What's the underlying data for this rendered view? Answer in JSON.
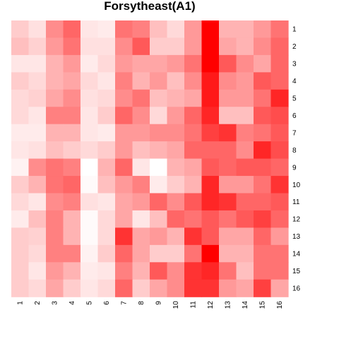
{
  "chart_data": {
    "type": "heatmap",
    "title": "Forsytheast(A1)",
    "xlabel": "",
    "ylabel": "",
    "x_labels": [
      "1",
      "2",
      "3",
      "4",
      "5",
      "6",
      "7",
      "8",
      "9",
      "10",
      "11",
      "12",
      "13",
      "14",
      "15",
      "16"
    ],
    "y_labels": [
      "1",
      "2",
      "3",
      "4",
      "5",
      "6",
      "7",
      "8",
      "9",
      "10",
      "11",
      "12",
      "13",
      "14",
      "15",
      "16"
    ],
    "value_range": [
      0,
      1
    ],
    "color_low": "#ffffff",
    "color_high": "#ff0000",
    "legend": "none",
    "grid": false,
    "values": [
      [
        0.2,
        0.12,
        0.45,
        0.6,
        0.1,
        0.08,
        0.55,
        0.5,
        0.25,
        0.15,
        0.4,
        1.0,
        0.3,
        0.3,
        0.4,
        0.55
      ],
      [
        0.25,
        0.18,
        0.4,
        0.55,
        0.12,
        0.12,
        0.45,
        0.65,
        0.2,
        0.2,
        0.4,
        1.0,
        0.35,
        0.3,
        0.45,
        0.6
      ],
      [
        0.1,
        0.1,
        0.3,
        0.4,
        0.08,
        0.15,
        0.4,
        0.35,
        0.35,
        0.4,
        0.55,
        1.0,
        0.65,
        0.45,
        0.35,
        0.6
      ],
      [
        0.2,
        0.15,
        0.3,
        0.35,
        0.15,
        0.1,
        0.5,
        0.3,
        0.4,
        0.25,
        0.45,
        0.9,
        0.45,
        0.4,
        0.65,
        0.6
      ],
      [
        0.15,
        0.18,
        0.35,
        0.45,
        0.12,
        0.15,
        0.45,
        0.55,
        0.25,
        0.3,
        0.35,
        0.9,
        0.4,
        0.4,
        0.55,
        0.85
      ],
      [
        0.15,
        0.1,
        0.5,
        0.5,
        0.1,
        0.2,
        0.6,
        0.45,
        0.15,
        0.4,
        0.6,
        0.85,
        0.25,
        0.25,
        0.65,
        0.7
      ],
      [
        0.08,
        0.08,
        0.3,
        0.3,
        0.1,
        0.08,
        0.4,
        0.4,
        0.45,
        0.45,
        0.55,
        0.75,
        0.8,
        0.5,
        0.55,
        0.65
      ],
      [
        0.1,
        0.12,
        0.25,
        0.2,
        0.15,
        0.2,
        0.4,
        0.25,
        0.3,
        0.35,
        0.6,
        0.6,
        0.6,
        0.45,
        0.85,
        0.7
      ],
      [
        0.05,
        0.45,
        0.55,
        0.5,
        0.0,
        0.3,
        0.6,
        0.1,
        0.0,
        0.3,
        0.35,
        0.65,
        0.6,
        0.65,
        0.65,
        0.6
      ],
      [
        0.2,
        0.3,
        0.55,
        0.6,
        0.02,
        0.25,
        0.4,
        0.5,
        0.08,
        0.2,
        0.3,
        0.85,
        0.4,
        0.4,
        0.55,
        0.8
      ],
      [
        0.15,
        0.1,
        0.45,
        0.5,
        0.12,
        0.1,
        0.35,
        0.4,
        0.6,
        0.45,
        0.65,
        0.85,
        0.8,
        0.6,
        0.6,
        0.65
      ],
      [
        0.08,
        0.25,
        0.5,
        0.3,
        0.02,
        0.15,
        0.35,
        0.1,
        0.25,
        0.6,
        0.55,
        0.65,
        0.55,
        0.65,
        0.75,
        0.6
      ],
      [
        0.2,
        0.18,
        0.5,
        0.3,
        0.02,
        0.15,
        0.8,
        0.35,
        0.4,
        0.3,
        0.8,
        0.65,
        0.35,
        0.35,
        0.6,
        0.4
      ],
      [
        0.2,
        0.15,
        0.5,
        0.5,
        0.05,
        0.2,
        0.6,
        0.35,
        0.2,
        0.2,
        0.55,
        1.0,
        0.3,
        0.3,
        0.55,
        0.55
      ],
      [
        0.2,
        0.1,
        0.4,
        0.3,
        0.08,
        0.1,
        0.5,
        0.3,
        0.65,
        0.45,
        0.8,
        0.85,
        0.55,
        0.25,
        0.55,
        0.55
      ],
      [
        0.2,
        0.15,
        0.35,
        0.2,
        0.1,
        0.15,
        0.6,
        0.2,
        0.35,
        0.45,
        0.8,
        0.8,
        0.4,
        0.35,
        0.75,
        0.35
      ]
    ]
  }
}
